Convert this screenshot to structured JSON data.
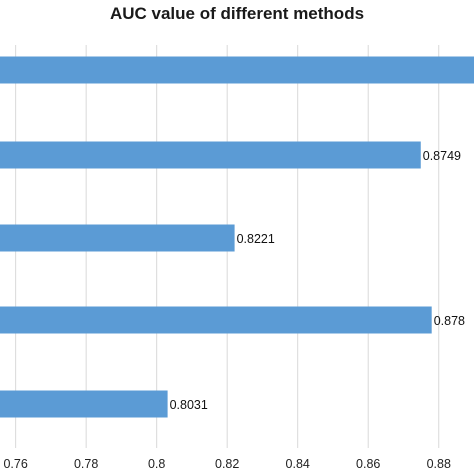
{
  "chart_data": {
    "type": "bar",
    "orientation": "horizontal",
    "title": "AUC value of different  methods",
    "xlabel": "",
    "ylabel": "",
    "categories": [
      "",
      "",
      "",
      "",
      ""
    ],
    "values": [
      0.89,
      0.8749,
      0.8221,
      0.878,
      0.8031
    ],
    "data_labels": [
      "",
      "0.8749",
      "0.8221",
      "0.878",
      "0.8031"
    ],
    "xlim": [
      0.755,
      0.89
    ],
    "xticks": [
      "0.76",
      "0.78",
      "0.8",
      "0.82",
      "0.84",
      "0.86",
      "0.88"
    ],
    "grid": true,
    "legend": "none",
    "bar_color": "#5b9bd5"
  }
}
